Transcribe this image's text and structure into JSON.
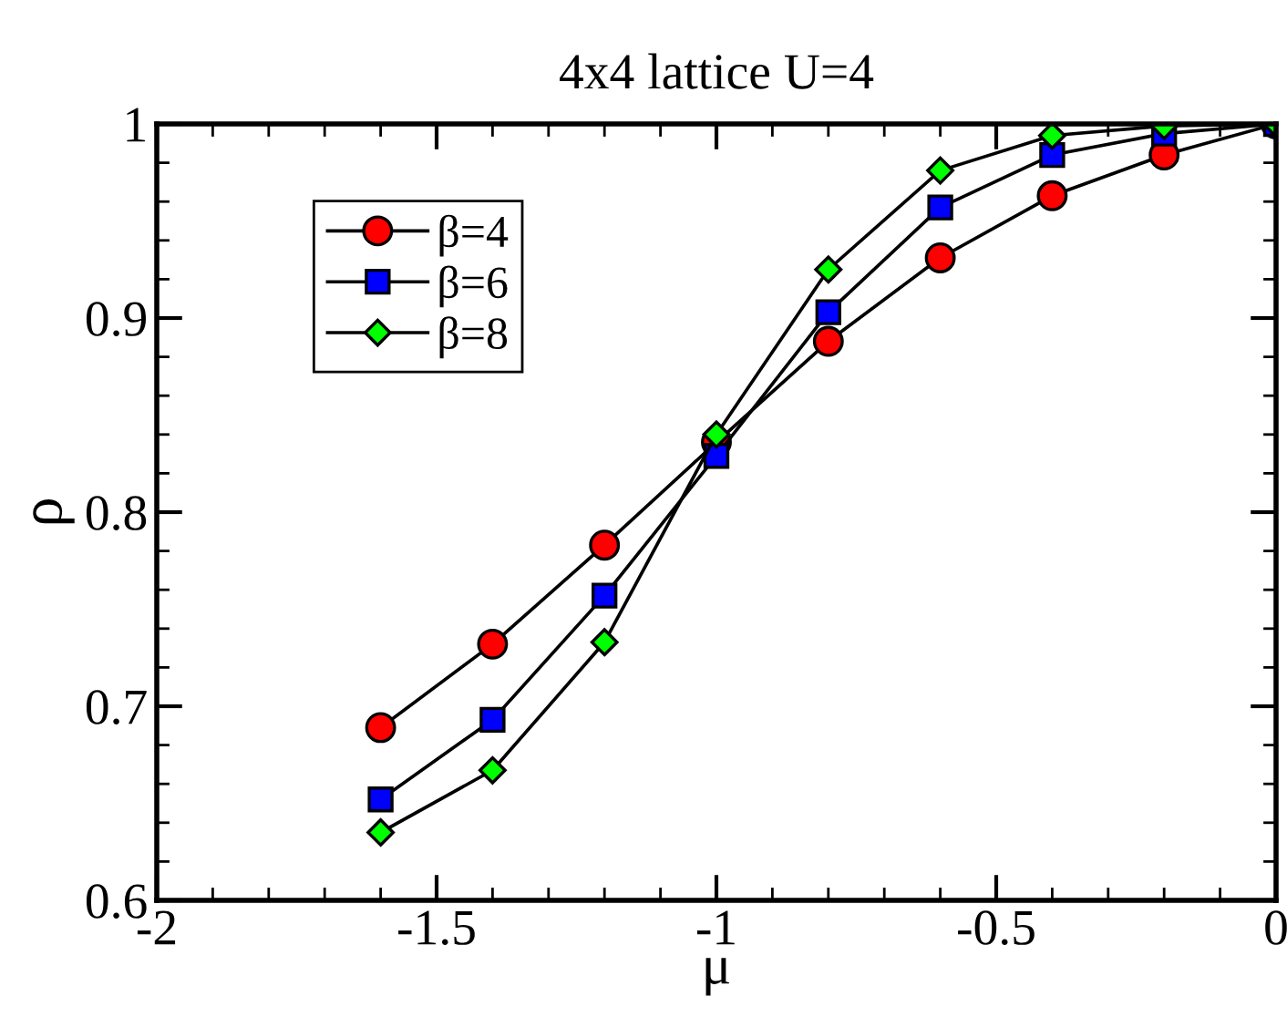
{
  "chart_data": {
    "type": "line",
    "title": "4x4 lattice U=4",
    "xlabel": "μ",
    "ylabel": "ρ",
    "x": [
      -1.6,
      -1.4,
      -1.2,
      -1.0,
      -0.8,
      -0.6,
      -0.4,
      -0.2,
      0
    ],
    "series": [
      {
        "name": "β=4",
        "color": "#ff0000",
        "marker": "circle",
        "values": [
          0.689,
          0.732,
          0.783,
          0.836,
          0.888,
          0.931,
          0.963,
          0.984,
          1.0
        ]
      },
      {
        "name": "β=6",
        "color": "#0000ff",
        "marker": "square",
        "values": [
          0.652,
          0.693,
          0.757,
          0.829,
          0.903,
          0.957,
          0.984,
          0.995,
          1.0
        ]
      },
      {
        "name": "β=8",
        "color": "#00ff00",
        "marker": "diamond",
        "values": [
          0.635,
          0.667,
          0.733,
          0.84,
          0.925,
          0.976,
          0.994,
          0.999,
          1.0
        ]
      }
    ],
    "xlim": [
      -2,
      0
    ],
    "xticks": [
      -2,
      -1.5,
      -1,
      -0.5,
      0
    ],
    "ylim": [
      0.6,
      1.0
    ],
    "yticks": [
      0.6,
      0.7,
      0.8,
      0.9,
      1
    ],
    "grid": false,
    "legend": "top left",
    "line_style": "solid"
  }
}
